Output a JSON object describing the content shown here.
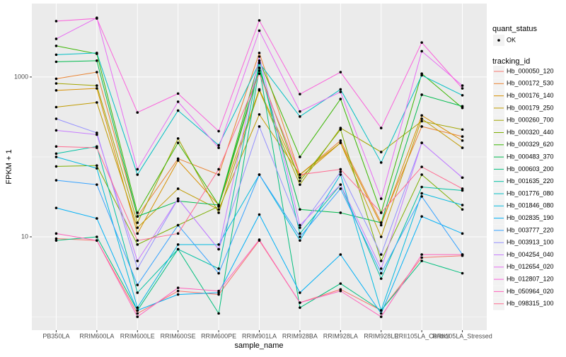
{
  "chart_data": {
    "type": "line",
    "log_y": true,
    "grid": true,
    "x_label": "sample_name",
    "y_label": "FPKM + 1",
    "categories": [
      "PB350LA",
      "RRIM600LA",
      "RRIM600LE",
      "RRIM600SE",
      "RRIM600PE",
      "RRIM901LA",
      "RRIM928BA",
      "RRIM928LA",
      "RRIM928LE",
      "RRII105LA_Control",
      "RRII105LA_Stressed"
    ],
    "ylim": [
      0.68,
      8300
    ],
    "yticks": [
      10,
      1000
    ],
    "y_minor_ticks": [
      1,
      100
    ],
    "point_legend": {
      "title": "quant_status",
      "labels": [
        "OK"
      ]
    },
    "legend_title": "tracking_id",
    "series": [
      {
        "name": "Hb_000050_120",
        "color": "#F8766D",
        "values": [
          9.5,
          9,
          1.1,
          2.1,
          1.9,
          9,
          1.5,
          2.2,
          1.2,
          5.5,
          5.8
        ]
      },
      {
        "name": "Hb_000172_530",
        "color": "#EA8331",
        "values": [
          950,
          1150,
          18,
          95,
          60,
          2000,
          60,
          160,
          15,
          240,
          180
        ]
      },
      {
        "name": "Hb_000176_140",
        "color": "#D89000",
        "values": [
          680,
          720,
          11,
          90,
          25,
          700,
          55,
          150,
          14,
          330,
          160
        ]
      },
      {
        "name": "Hb_000179_250",
        "color": "#C09B00",
        "values": [
          420,
          480,
          13,
          40,
          22,
          340,
          60,
          150,
          10,
          300,
          130
        ]
      },
      {
        "name": "Hb_000260_700",
        "color": "#A3A500",
        "values": [
          830,
          780,
          15,
          170,
          20,
          680,
          45,
          230,
          115,
          280,
          220
        ]
      },
      {
        "name": "Hb_000320_440",
        "color": "#7CAE00",
        "values": [
          76,
          78,
          8,
          14,
          24,
          1200,
          50,
          220,
          5,
          60,
          22
        ]
      },
      {
        "name": "Hb_000329_620",
        "color": "#39B600",
        "values": [
          2450,
          1950,
          20,
          150,
          25,
          1600,
          100,
          530,
          20,
          1100,
          410
        ]
      },
      {
        "name": "Hb_000483_370",
        "color": "#00BB4E",
        "values": [
          1550,
          1600,
          18,
          28,
          25,
          1300,
          22,
          20,
          15,
          600,
          430
        ]
      },
      {
        "name": "Hb_000603_200",
        "color": "#00BF7D",
        "values": [
          9,
          10,
          1.2,
          7,
          1.1,
          1300,
          1.3,
          2.6,
          1.2,
          5,
          3.5
        ]
      },
      {
        "name": "Hb_001635_220",
        "color": "#00C1A3",
        "values": [
          110,
          135,
          2,
          7,
          4,
          1500,
          11,
          45,
          3,
          42,
          38
        ]
      },
      {
        "name": "Hb_001776_080",
        "color": "#00BFC4",
        "values": [
          1900,
          2000,
          60,
          380,
          140,
          1500,
          320,
          700,
          85,
          1050,
          590
        ]
      },
      {
        "name": "Hb_001846_080",
        "color": "#00BAE0",
        "values": [
          100,
          72,
          1.3,
          8,
          8,
          60,
          9,
          60,
          1.2,
          35,
          25
        ]
      },
      {
        "name": "Hb_002835_190",
        "color": "#00B0F6",
        "values": [
          23,
          17,
          1.2,
          1.9,
          2,
          19,
          2,
          6,
          1.1,
          18,
          11
        ]
      },
      {
        "name": "Hb_003777_220",
        "color": "#35A2FF",
        "values": [
          51,
          45,
          2.5,
          14,
          3.5,
          60,
          10,
          40,
          3.5,
          32,
          6
        ]
      },
      {
        "name": "Hb_003913_100",
        "color": "#9590FF",
        "values": [
          300,
          200,
          4,
          30,
          7,
          240,
          13,
          65,
          6,
          150,
          55
        ]
      },
      {
        "name": "Hb_004254_040",
        "color": "#C77CFF",
        "values": [
          215,
          190,
          5,
          30,
          7,
          1800,
          14,
          45,
          4,
          150,
          55
        ]
      },
      {
        "name": "Hb_012654_020",
        "color": "#E76BF3",
        "values": [
          3000,
          5500,
          70,
          490,
          130,
          3800,
          370,
          650,
          30,
          2100,
          780
        ]
      },
      {
        "name": "Hb_012807_120",
        "color": "#FA62DB",
        "values": [
          5000,
          5400,
          360,
          620,
          210,
          5100,
          610,
          1150,
          230,
          2700,
          720
        ]
      },
      {
        "name": "Hb_050964_020",
        "color": "#FF62BC",
        "values": [
          11,
          9,
          1,
          2.3,
          2.1,
          9.2,
          1.5,
          2.1,
          1,
          6,
          6
        ]
      },
      {
        "name": "Hb_098315_100",
        "color": "#FF6C91",
        "values": [
          135,
          130,
          9,
          11,
          70,
          1100,
          60,
          70,
          20,
          75,
          40
        ]
      }
    ]
  }
}
